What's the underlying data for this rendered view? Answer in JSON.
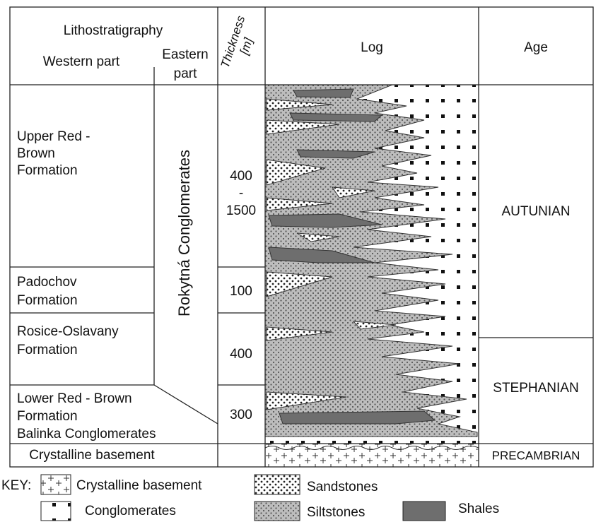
{
  "header": {
    "lithostratigraphy": "Lithostratigraphy",
    "western_part": "Western part",
    "eastern_part": [
      "Eastern",
      "part"
    ],
    "thickness": [
      "Thickness",
      "[m]"
    ],
    "log": "Log",
    "age": "Age"
  },
  "western": [
    [
      "Upper Red -",
      "Brown",
      "Formation"
    ],
    [
      "Padochov",
      "Formation"
    ],
    [
      "Rosice-Oslavany",
      "Formation"
    ],
    [
      "Lower Red - Brown",
      "Formation",
      "Balinka Conglomerates"
    ],
    [
      "Crystalline basement"
    ]
  ],
  "eastern": "Rokytná Conglomerates",
  "thickness": [
    [
      "400",
      "-",
      "1500"
    ],
    [
      "100"
    ],
    [
      "400"
    ],
    [
      "300"
    ]
  ],
  "ages": [
    "AUTUNIAN",
    "STEPHANIAN",
    "PRECAMBRIAN"
  ],
  "key": {
    "title": "KEY:",
    "crystalline_basement": "Crystalline basement",
    "sandstones": "Sandstones",
    "conglomerates": "Conglomerates",
    "siltstones": "Siltstones",
    "shales": "Shales"
  }
}
